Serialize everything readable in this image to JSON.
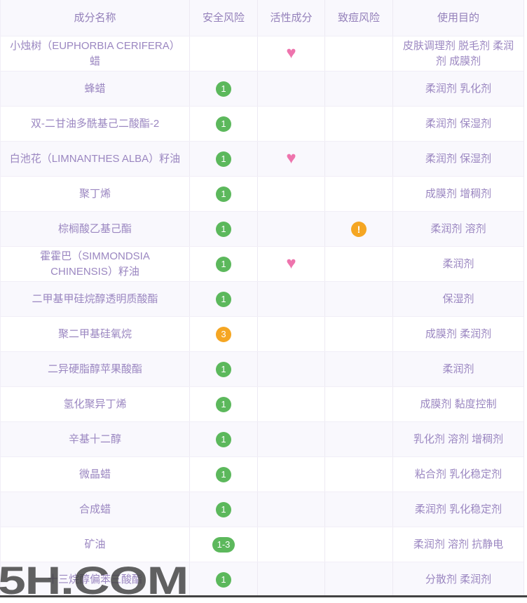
{
  "table": {
    "headers": [
      {
        "label": "成分名称"
      },
      {
        "label": "安全风险"
      },
      {
        "label": "活性成分"
      },
      {
        "label": "致痘风险"
      },
      {
        "label": "使用目的"
      }
    ],
    "rows": [
      {
        "name": "小烛树（EUPHORBIA CERIFERA）蜡",
        "safety": null,
        "safety_color": null,
        "active": true,
        "acne": false,
        "purpose": "皮肤调理剂 脱毛剂 柔润剂 成膜剂"
      },
      {
        "name": "蜂蜡",
        "safety": "1",
        "safety_color": "green",
        "active": false,
        "acne": false,
        "purpose": "柔润剂 乳化剂"
      },
      {
        "name": "双-二甘油多酰基己二酸酯-2",
        "safety": "1",
        "safety_color": "green",
        "active": false,
        "acne": false,
        "purpose": "柔润剂 保湿剂"
      },
      {
        "name": "白池花（LIMNANTHES ALBA）籽油",
        "safety": "1",
        "safety_color": "green",
        "active": true,
        "acne": false,
        "purpose": "柔润剂 保湿剂"
      },
      {
        "name": "聚丁烯",
        "safety": "1",
        "safety_color": "green",
        "active": false,
        "acne": false,
        "purpose": "成膜剂 增稠剂"
      },
      {
        "name": "棕榈酸乙基己酯",
        "safety": "1",
        "safety_color": "green",
        "active": false,
        "acne": true,
        "purpose": "柔润剂 溶剂"
      },
      {
        "name": "霍霍巴（SIMMONDSIA CHINENSIS）籽油",
        "safety": "1",
        "safety_color": "green",
        "active": true,
        "acne": false,
        "purpose": "柔润剂"
      },
      {
        "name": "二甲基甲硅烷醇透明质酸酯",
        "safety": "1",
        "safety_color": "green",
        "active": false,
        "acne": false,
        "purpose": "保湿剂"
      },
      {
        "name": "聚二甲基硅氧烷",
        "safety": "3",
        "safety_color": "orange",
        "active": false,
        "acne": false,
        "purpose": "成膜剂 柔润剂"
      },
      {
        "name": "二异硬脂醇苹果酸酯",
        "safety": "1",
        "safety_color": "green",
        "active": false,
        "acne": false,
        "purpose": "柔润剂"
      },
      {
        "name": "氢化聚异丁烯",
        "safety": "1",
        "safety_color": "green",
        "active": false,
        "acne": false,
        "purpose": "成膜剂 黏度控制"
      },
      {
        "name": "辛基十二醇",
        "safety": "1",
        "safety_color": "green",
        "active": false,
        "acne": false,
        "purpose": "乳化剂 溶剂 增稠剂"
      },
      {
        "name": "微晶蜡",
        "safety": "1",
        "safety_color": "green",
        "active": false,
        "acne": false,
        "purpose": "粘合剂 乳化稳定剂"
      },
      {
        "name": "合成蜡",
        "safety": "1",
        "safety_color": "green",
        "active": false,
        "acne": false,
        "purpose": "柔润剂 乳化稳定剂"
      },
      {
        "name": "矿油",
        "safety": "1-3",
        "safety_color": "green",
        "active": false,
        "acne": false,
        "purpose": "柔润剂 溶剂 抗静电"
      },
      {
        "name": "十三烷醇偏苯三酸酯",
        "safety": "1",
        "safety_color": "green",
        "active": false,
        "acne": false,
        "purpose": "分散剂 柔润剂"
      }
    ]
  },
  "icons": {
    "heart": "♥",
    "warning": "!"
  },
  "colors": {
    "safe_green": "#5cb85c",
    "risk_orange": "#f5a623",
    "heart_pink": "#ee74ad",
    "text_purple": "#9b87c1",
    "row_alt_bg": "#f9f8fd"
  },
  "watermark": {
    "text": "5H.COM"
  }
}
